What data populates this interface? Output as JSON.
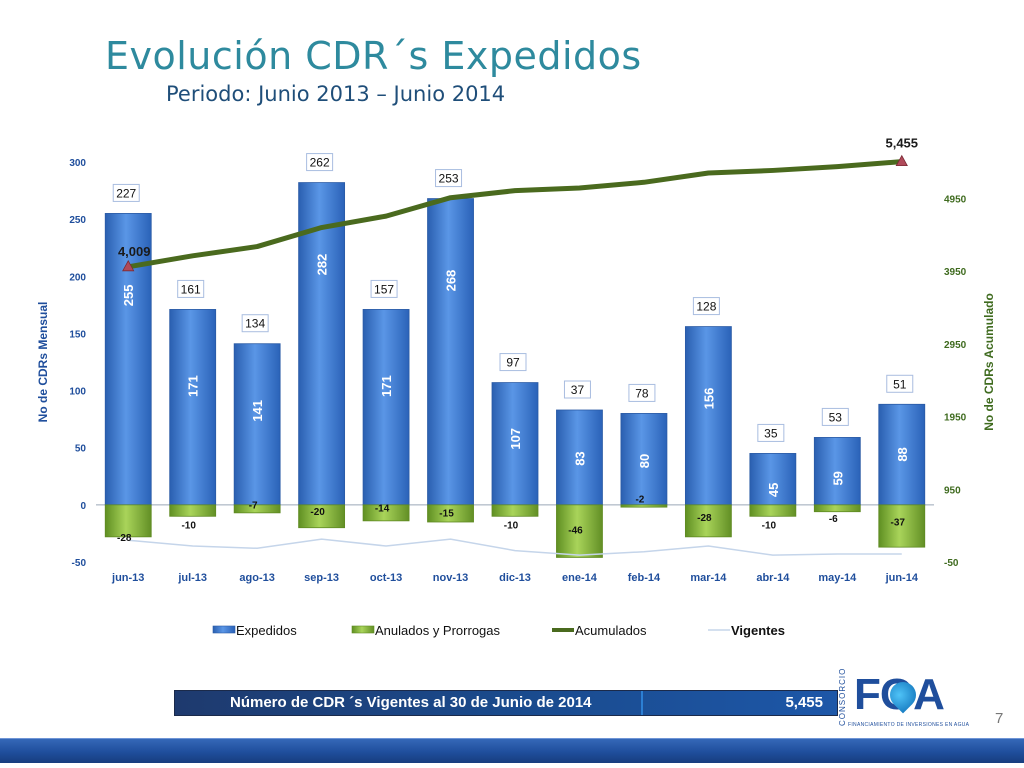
{
  "title": "Evolución CDR´s Expedidos",
  "subtitle": "Periodo: Junio 2013 – Junio 2014",
  "chart_data": {
    "type": "bar",
    "categories": [
      "jun-13",
      "jul-13",
      "ago-13",
      "sep-13",
      "oct-13",
      "nov-13",
      "dic-13",
      "ene-14",
      "feb-14",
      "mar-14",
      "abr-14",
      "may-14",
      "jun-14"
    ],
    "series": [
      {
        "name": "Expedidos",
        "type": "bar",
        "axis": "left",
        "values": [
          255,
          171,
          141,
          282,
          171,
          268,
          107,
          83,
          80,
          156,
          45,
          59,
          88
        ]
      },
      {
        "name": "Anulados y Prorrogas",
        "type": "bar",
        "axis": "left",
        "values": [
          -28,
          -10,
          -7,
          -20,
          -14,
          -15,
          -10,
          -46,
          -2,
          -28,
          -10,
          -6,
          -37
        ]
      },
      {
        "name": "Acumulados",
        "type": "line",
        "axis": "right",
        "values": [
          4009,
          4160,
          4287,
          4549,
          4706,
          4959,
          5056,
          5093,
          5171,
          5299,
          5334,
          5387,
          5455
        ]
      },
      {
        "name": "Vigentes",
        "type": "line",
        "axis": "left",
        "values": [
          -31,
          -36,
          -38,
          -30,
          -36,
          -30,
          -40,
          -44,
          -41,
          -36,
          -44,
          -43,
          -43
        ]
      }
    ],
    "net_labels": [
      227,
      161,
      134,
      262,
      157,
      253,
      97,
      37,
      78,
      128,
      35,
      53,
      51
    ],
    "acumulado_labels": {
      "first": "4,009",
      "last": "5,455"
    },
    "ylabel": "No de CDRs Mensual",
    "y2label": "No de CDRs Acumulado",
    "ylim": [
      -50,
      300
    ],
    "yticks": [
      -50,
      0,
      50,
      100,
      150,
      200,
      250,
      300
    ],
    "y2lim": [
      -50,
      5450
    ],
    "y2ticks": [
      -50,
      950,
      1950,
      2950,
      3950,
      4950
    ],
    "legend_position": "bottom",
    "colors": {
      "expedidos": "#3a78cf",
      "anulados": "#86b83a",
      "acumulados": "#4a6a1e",
      "vigentes": "#c5d5ea",
      "axis_left": "#1f4e9c",
      "axis_right": "#3f6b1f"
    }
  },
  "banner": {
    "label": "Número de CDR ´s Vigentes al 30 de Junio de 2014",
    "value": "5,455"
  },
  "logo": {
    "text": "FOA",
    "side_text": "CONSORCIO",
    "subtext": "FINANCIAMIENTO DE INVERSIONES EN AGUA"
  },
  "page_number": "7"
}
